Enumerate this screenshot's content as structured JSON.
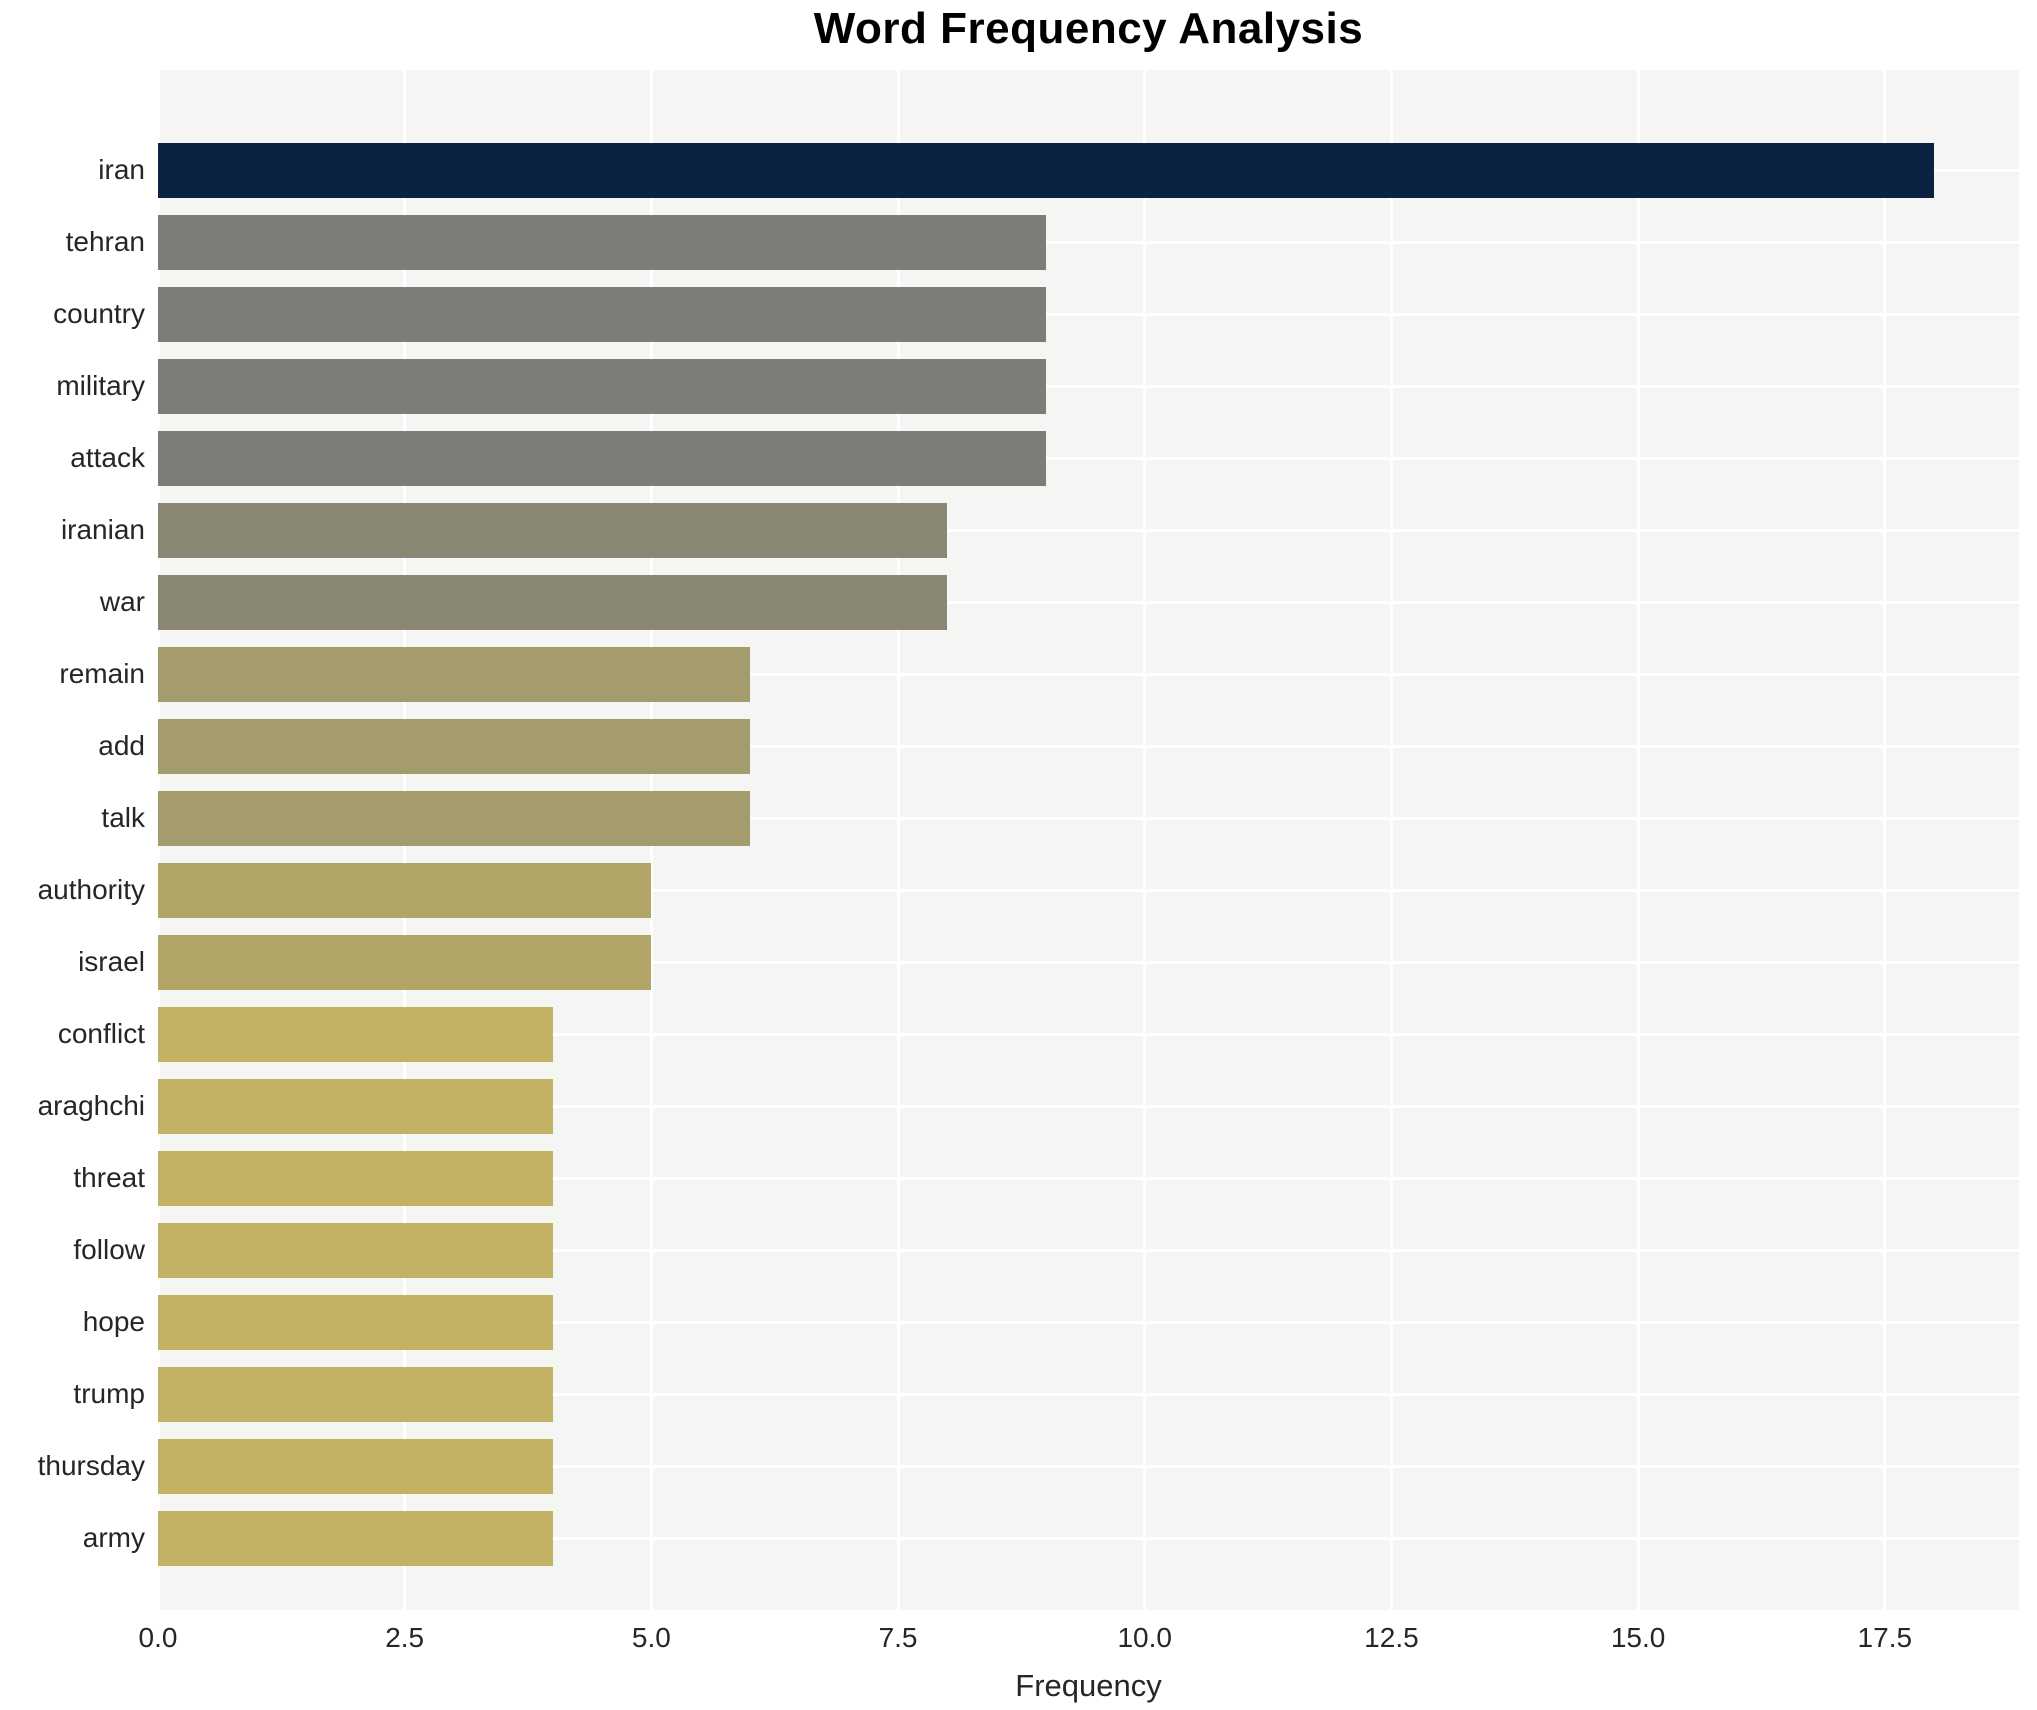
{
  "chart_data": {
    "type": "bar",
    "orientation": "horizontal",
    "title": "Word Frequency Analysis",
    "xlabel": "Frequency",
    "ylabel": "",
    "categories": [
      "iran",
      "tehran",
      "country",
      "military",
      "attack",
      "iranian",
      "war",
      "remain",
      "add",
      "talk",
      "authority",
      "israel",
      "conflict",
      "araghchi",
      "threat",
      "follow",
      "hope",
      "trump",
      "thursday",
      "army"
    ],
    "values": [
      18,
      9,
      9,
      9,
      9,
      8,
      8,
      6,
      6,
      6,
      5,
      5,
      4,
      4,
      4,
      4,
      4,
      4,
      4,
      4
    ],
    "bar_colors": [
      "#0b2343",
      "#7e7c78",
      "#7e7c78",
      "#7e7c78",
      "#7e7c78",
      "#898673",
      "#898673",
      "#a59c6e",
      "#a59c6e",
      "#a59c6e",
      "#b1a668",
      "#b1a668",
      "#c3b164",
      "#c3b164",
      "#c3b164",
      "#c3b164",
      "#c3b164",
      "#c3b164",
      "#c3b164",
      "#c3b164"
    ],
    "xlim": [
      0,
      18.86
    ],
    "xticks": [
      0,
      2.5,
      5,
      7.5,
      10,
      12.5,
      15,
      17.5
    ],
    "xtick_labels": [
      "0.0",
      "2.5",
      "5.0",
      "7.5",
      "10.0",
      "12.5",
      "15.0",
      "17.5"
    ],
    "grid": true,
    "grid_color": "#ffffff",
    "plot_background": "#f5f5f3",
    "legend": "none"
  }
}
